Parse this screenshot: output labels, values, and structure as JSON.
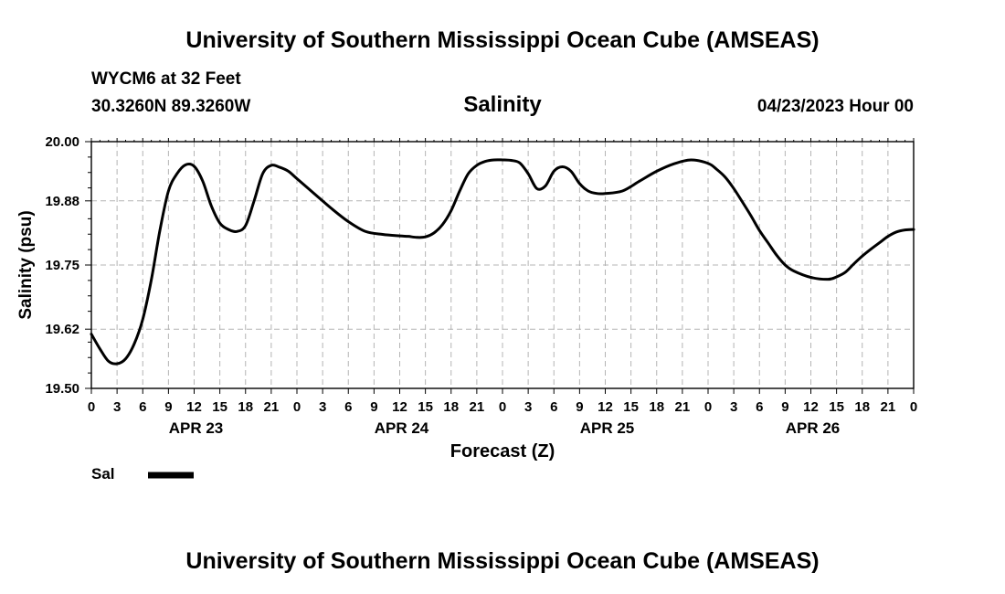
{
  "header": {
    "title": "University of Southern Mississippi Ocean Cube (AMSEAS)",
    "station": "WYCM6 at 32 Feet",
    "coordinates": "30.3260N  89.3260W",
    "chart_title": "Salinity",
    "datetime": "04/23/2023 Hour 00"
  },
  "footer": {
    "title": "University of Southern Mississippi Ocean Cube (AMSEAS)"
  },
  "chart_data": {
    "type": "line",
    "title": "Salinity",
    "xlabel": "Forecast (Z)",
    "ylabel": "Salinity (psu)",
    "xlim": [
      0,
      96
    ],
    "ylim": [
      19.5,
      20.0
    ],
    "yticks": [
      "19.50",
      "19.62",
      "19.75",
      "19.88",
      "20.00"
    ],
    "xtick_labels": [
      "0",
      "3",
      "6",
      "9",
      "12",
      "15",
      "18",
      "21",
      "0",
      "3",
      "6",
      "9",
      "12",
      "15",
      "18",
      "21",
      "0",
      "3",
      "6",
      "9",
      "12",
      "15",
      "18",
      "21",
      "0",
      "3",
      "6",
      "9",
      "12",
      "15",
      "18",
      "21",
      "0"
    ],
    "day_labels": [
      {
        "hour": 12,
        "label": "APR 23"
      },
      {
        "hour": 36,
        "label": "APR 24"
      },
      {
        "hour": 60,
        "label": "APR 25"
      },
      {
        "hour": 84,
        "label": "APR 26"
      }
    ],
    "grid": true,
    "legend": {
      "position": "bottom-left",
      "label": "Sal"
    },
    "series": [
      {
        "name": "Sal",
        "color": "#000000",
        "x": [
          0,
          1,
          2,
          3,
          4,
          5,
          6,
          7,
          8,
          9,
          10,
          11,
          12,
          13,
          14,
          15,
          16,
          17,
          18,
          19,
          20,
          21,
          22,
          23,
          24,
          26,
          28,
          30,
          32,
          34,
          36,
          37,
          38,
          39,
          40,
          41,
          42,
          43,
          44,
          45,
          46,
          47,
          48,
          49,
          50,
          51,
          52,
          53,
          54,
          55,
          56,
          57,
          58,
          59,
          60,
          62,
          64,
          66,
          68,
          70,
          72,
          73,
          74,
          75,
          76,
          77,
          78,
          79,
          80,
          81,
          82,
          84,
          86,
          87,
          88,
          89,
          90,
          91,
          92,
          93,
          94,
          95,
          96
        ],
        "values": [
          19.61,
          19.58,
          19.555,
          19.55,
          19.56,
          19.59,
          19.64,
          19.72,
          19.82,
          19.9,
          19.935,
          19.953,
          19.95,
          19.92,
          19.87,
          19.835,
          19.822,
          19.818,
          19.83,
          19.88,
          19.935,
          19.952,
          19.948,
          19.94,
          19.925,
          19.895,
          19.865,
          19.838,
          19.818,
          19.812,
          19.809,
          19.808,
          19.806,
          19.807,
          19.815,
          19.832,
          19.86,
          19.9,
          19.935,
          19.952,
          19.96,
          19.963,
          19.963,
          19.962,
          19.957,
          19.935,
          19.905,
          19.91,
          19.94,
          19.949,
          19.94,
          19.915,
          19.9,
          19.895,
          19.895,
          19.9,
          19.92,
          19.94,
          19.955,
          19.963,
          19.956,
          19.944,
          19.928,
          19.905,
          19.878,
          19.85,
          19.82,
          19.795,
          19.77,
          19.75,
          19.738,
          19.725,
          19.721,
          19.726,
          19.735,
          19.752,
          19.768,
          19.782,
          19.795,
          19.808,
          19.817,
          19.821,
          19.822
        ]
      }
    ]
  }
}
